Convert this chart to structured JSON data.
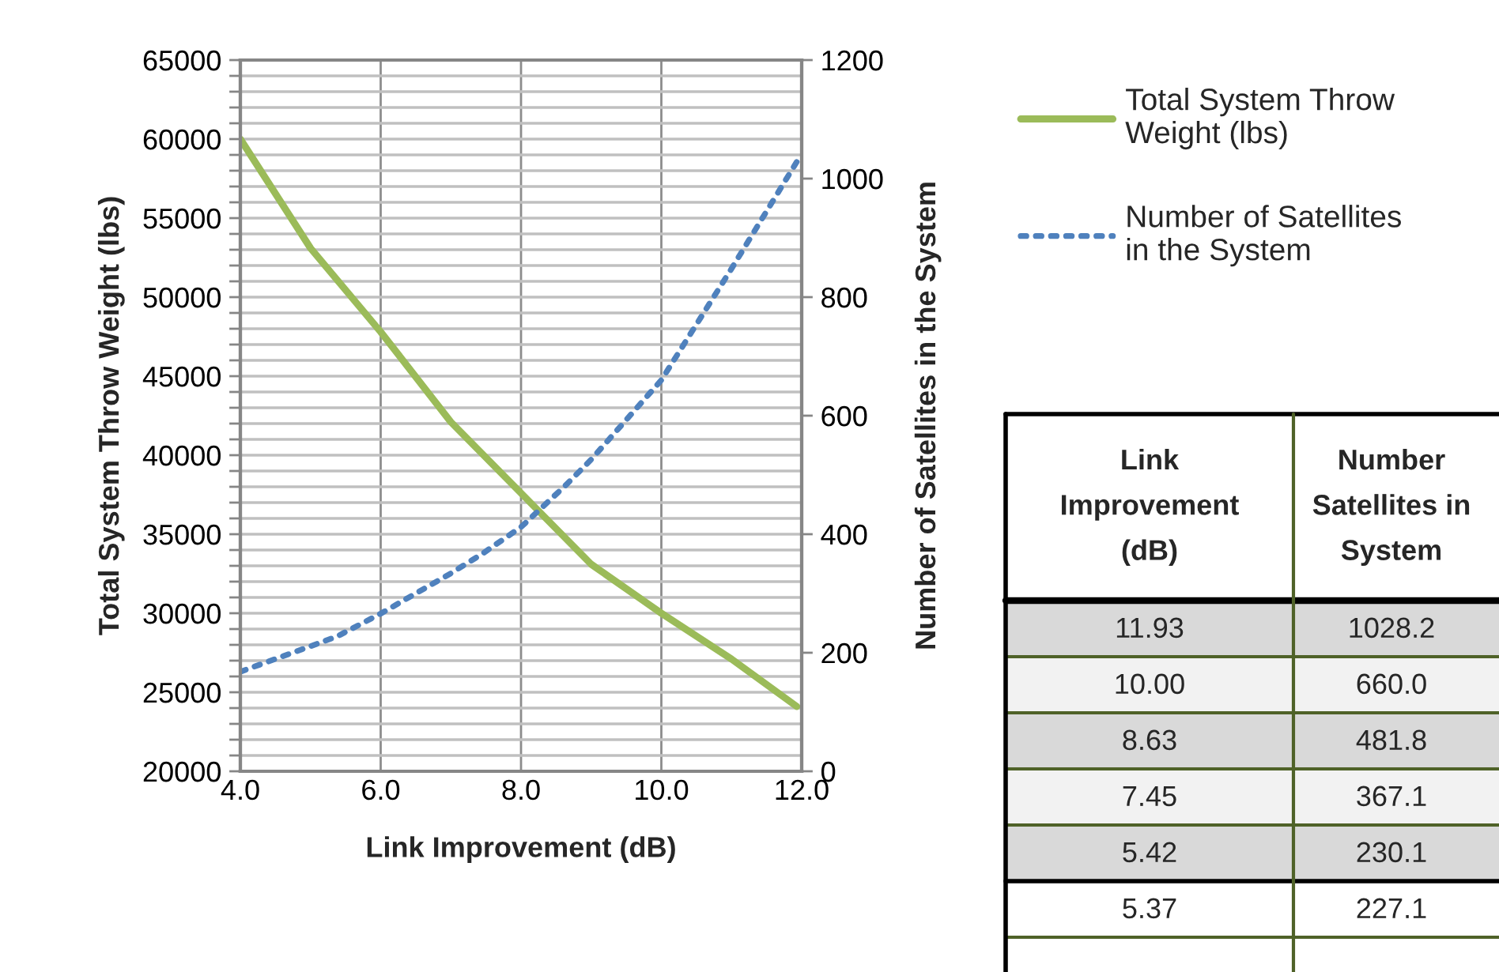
{
  "chart_data": [
    {
      "type": "line",
      "xlabel": "Link Improvement (dB)",
      "ylabel": "Total System Throw Weight (lbs)",
      "y2label": "Number of Satellites in the System",
      "xlim": [
        4,
        12
      ],
      "xticks": [
        {
          "value": 4,
          "label": "4.0"
        },
        {
          "value": 6,
          "label": "6.0"
        },
        {
          "value": 8,
          "label": "8.0"
        },
        {
          "value": 10,
          "label": "10.0"
        },
        {
          "value": 12,
          "label": "12.0"
        }
      ],
      "ylim": [
        20000,
        65000
      ],
      "yticks": [
        20000,
        {
          "value": 21000,
          "label": null
        },
        {
          "value": 22000,
          "label": null
        },
        {
          "value": 23000,
          "label": null
        },
        {
          "value": 24000,
          "label": null
        },
        25000,
        {
          "value": 26000,
          "label": null
        },
        {
          "value": 27000,
          "label": null
        },
        {
          "value": 28000,
          "label": null
        },
        {
          "value": 29000,
          "label": null
        },
        30000,
        {
          "value": 31000,
          "label": null
        },
        {
          "value": 32000,
          "label": null
        },
        {
          "value": 33000,
          "label": null
        },
        {
          "value": 34000,
          "label": null
        },
        35000,
        {
          "value": 36000,
          "label": null
        },
        {
          "value": 37000,
          "label": null
        },
        {
          "value": 38000,
          "label": null
        },
        {
          "value": 39000,
          "label": null
        },
        40000,
        {
          "value": 41000,
          "label": null
        },
        {
          "value": 42000,
          "label": null
        },
        {
          "value": 43000,
          "label": null
        },
        {
          "value": 44000,
          "label": null
        },
        45000,
        {
          "value": 46000,
          "label": null
        },
        {
          "value": 47000,
          "label": null
        },
        {
          "value": 48000,
          "label": null
        },
        {
          "value": 49000,
          "label": null
        },
        50000,
        {
          "value": 51000,
          "label": null
        },
        {
          "value": 52000,
          "label": null
        },
        {
          "value": 53000,
          "label": null
        },
        {
          "value": 54000,
          "label": null
        },
        55000,
        {
          "value": 56000,
          "label": null
        },
        {
          "value": 57000,
          "label": null
        },
        {
          "value": 58000,
          "label": null
        },
        {
          "value": 59000,
          "label": null
        },
        60000,
        {
          "value": 61000,
          "label": null
        },
        {
          "value": 62000,
          "label": null
        },
        {
          "value": 63000,
          "label": null
        },
        {
          "value": 64000,
          "label": null
        },
        65000
      ],
      "y2lim": [
        0,
        1200
      ],
      "y2ticks": [
        0,
        200,
        400,
        600,
        800,
        1000,
        1200
      ],
      "grid": true,
      "legend": "top right",
      "series": [
        {
          "name": "Total System Throw Weight (lbs)",
          "color": "#9bbb59",
          "line_style": "solid",
          "x": [
            4,
            5,
            6,
            7,
            8,
            9,
            10,
            11,
            11.93
          ],
          "values": [
            60000,
            53100,
            47800,
            42100,
            37600,
            33100,
            30000,
            27100,
            24100
          ]
        },
        {
          "name": "Number of Satellites in the System",
          "color": "#4f81bd",
          "line_style": "dotted",
          "axis": "y2",
          "x": [
            4,
            5,
            5.37,
            5.42,
            6,
            7,
            7.45,
            8,
            8.63,
            9,
            10,
            11,
            11.93
          ],
          "values": [
            168,
            211,
            227.1,
            230.1,
            266,
            334,
            367.1,
            412,
            481.8,
            526,
            660,
            848,
            1028.2
          ]
        }
      ]
    },
    {
      "type": "other",
      "annotations": [
        "Link\nImprovement\n(dB)",
        "Number\nSatellites in\nSystem",
        "11.93",
        "1028.2",
        "10.00",
        "660.0",
        "8.63",
        "481.8",
        "7.45",
        "367.1",
        "5.42",
        "230.1",
        "5.37",
        "227.1"
      ]
    }
  ]
}
